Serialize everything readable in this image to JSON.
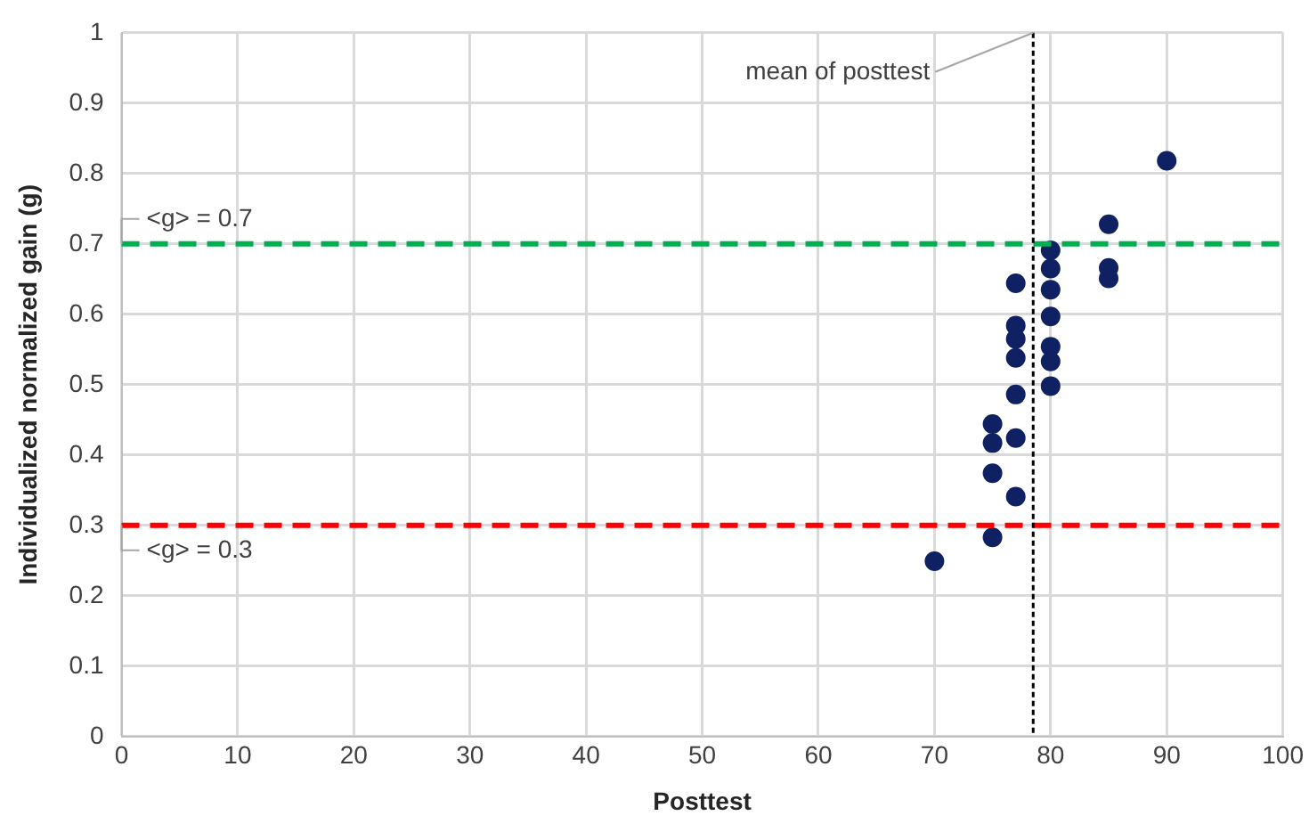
{
  "chart_data": {
    "type": "scatter",
    "xlabel": "Posttest",
    "ylabel": "Individualized normalized gain (g)",
    "x": [
      70,
      75,
      75,
      75,
      75,
      77,
      77,
      77,
      77,
      77,
      77,
      77,
      80,
      80,
      80,
      80,
      80,
      80,
      80,
      85,
      85,
      85,
      90
    ],
    "series": [
      {
        "color": "#0f2163",
        "values": [
          0.249,
          0.283,
          0.374,
          0.417,
          0.444,
          0.341,
          0.424,
          0.486,
          0.538,
          0.565,
          0.584,
          0.644,
          0.498,
          0.533,
          0.554,
          0.597,
          0.635,
          0.665,
          0.691,
          0.651,
          0.666,
          0.728,
          0.818
        ]
      }
    ],
    "xlim": [
      0,
      100
    ],
    "xticks": [
      0,
      10,
      20,
      30,
      40,
      50,
      60,
      70,
      80,
      90,
      100
    ],
    "ylim": [
      0,
      1
    ],
    "yticks": [
      0,
      0.1,
      0.2,
      0.3,
      0.4,
      0.5,
      0.6,
      0.7,
      0.8,
      0.9,
      1
    ],
    "ref_lines": [
      {
        "axis": "y",
        "value": 0.7,
        "label": "<g> = 0.7",
        "color": "#00b050",
        "line_style": "dashed"
      },
      {
        "axis": "y",
        "value": 0.3,
        "label": "<g> = 0.3",
        "color": "#ff0000",
        "line_style": "dashed"
      },
      {
        "axis": "x",
        "value": 78.5,
        "label": "mean of posttest",
        "color": "#000000",
        "line_style": "dotted"
      }
    ],
    "grid": true,
    "legend": false,
    "marker": "circle"
  }
}
